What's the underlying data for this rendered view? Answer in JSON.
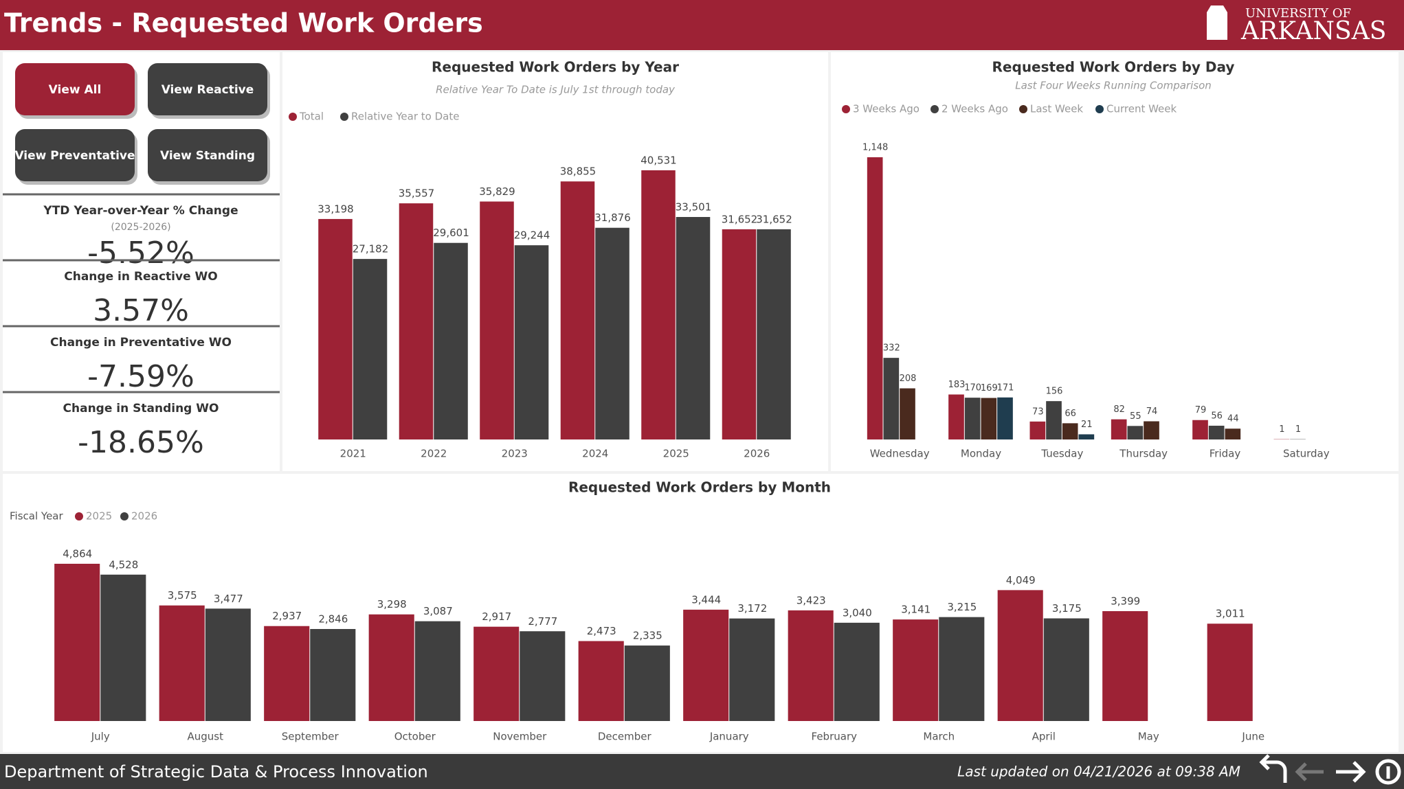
{
  "header": {
    "title": "Trends - Requested Work Orders",
    "logo_top": "UNIVERSITY OF",
    "logo_bottom": "ARKANSAS"
  },
  "buttons": [
    "View All",
    "View Reactive",
    "View Preventative",
    "View Standing"
  ],
  "kpis": [
    {
      "title": "YTD Year-over-Year % Change",
      "subtitle": "(2025-2026)",
      "value": "-5.52%"
    },
    {
      "title": "Change in Reactive WO",
      "value": "3.57%"
    },
    {
      "title": "Change in Preventative WO",
      "value": "-7.59%"
    },
    {
      "title": "Change in Standing WO",
      "value": "-18.65%"
    }
  ],
  "chart_data": [
    {
      "type": "bar",
      "title": "Requested Work Orders by Year",
      "subtitle": "Relative Year To Date is July 1st through today",
      "categories": [
        "2021",
        "2022",
        "2023",
        "2024",
        "2025",
        "2026"
      ],
      "series": [
        {
          "name": "Total",
          "color": "#9d2235",
          "values": [
            33198,
            35557,
            35829,
            38855,
            40531,
            31652
          ],
          "value_labels": [
            "33,198",
            "35,557",
            "35,829",
            "38,855",
            "40,531",
            "31,652"
          ]
        },
        {
          "name": "Relative Year to Date",
          "color": "#404040",
          "values": [
            27182,
            29601,
            29244,
            31876,
            33501,
            31652
          ],
          "value_labels": [
            "27,182",
            "29,601",
            "29,244",
            "31,876",
            "33,501",
            "31,652"
          ]
        }
      ]
    },
    {
      "type": "bar",
      "title": "Requested Work Orders by Day",
      "subtitle": "Last Four Weeks Running Comparison",
      "categories": [
        "Wednesday",
        "Monday",
        "Tuesday",
        "Thursday",
        "Friday",
        "Saturday"
      ],
      "series": [
        {
          "name": "3 Weeks Ago",
          "color": "#9d2235",
          "values": [
            1148,
            183,
            73,
            82,
            79,
            1
          ],
          "value_labels": [
            "1,148",
            "183",
            "73",
            "82",
            "79",
            "1"
          ]
        },
        {
          "name": "2 Weeks Ago",
          "color": "#404040",
          "values": [
            332,
            170,
            156,
            55,
            56,
            1
          ]
        },
        {
          "name": "Last Week",
          "color": "#4a2a1e",
          "values": [
            208,
            169,
            66,
            74,
            44,
            null
          ]
        },
        {
          "name": "Current Week",
          "color": "#1f3d4f",
          "values": [
            null,
            171,
            21,
            null,
            null,
            null
          ]
        }
      ]
    },
    {
      "type": "bar",
      "title": "Requested Work Orders by Month",
      "legend_title": "Fiscal Year",
      "categories": [
        "July",
        "August",
        "September",
        "October",
        "November",
        "December",
        "January",
        "February",
        "March",
        "April",
        "May",
        "June"
      ],
      "series": [
        {
          "name": "2025",
          "color": "#9d2235",
          "values": [
            4864,
            3575,
            2937,
            3298,
            2917,
            2473,
            3444,
            3423,
            3141,
            4049,
            3399,
            3011
          ],
          "value_labels": [
            "4,864",
            "3,575",
            "2,937",
            "3,298",
            "2,917",
            "2,473",
            "3,444",
            "3,423",
            "3,141",
            "4,049",
            "3,399",
            "3,011"
          ]
        },
        {
          "name": "2026",
          "color": "#404040",
          "values": [
            4528,
            3477,
            2846,
            3087,
            2777,
            2335,
            3172,
            3040,
            3215,
            3175,
            null,
            null
          ],
          "value_labels": [
            "4,528",
            "3,477",
            "2,846",
            "3,087",
            "2,777",
            "2,335",
            "3,172",
            "3,040",
            "3,215",
            "3,175",
            null,
            null
          ]
        }
      ]
    }
  ],
  "footer": {
    "left": "Department of Strategic Data & Process Innovation",
    "right": "Last updated on 04/21/2026 at 09:38 AM"
  }
}
